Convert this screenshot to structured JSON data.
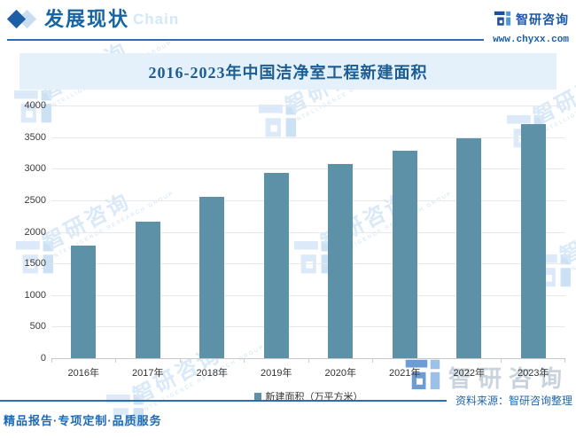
{
  "header": {
    "page_title": "发展现状",
    "watermark_text": "Chain",
    "brand_name": "智研咨询",
    "brand_url": "www.chyxx.com"
  },
  "chart_data": {
    "type": "bar",
    "title": "2016-2023年中国洁净室工程新建面积",
    "categories": [
      "2016年",
      "2017年",
      "2018年",
      "2019年",
      "2020年",
      "2021年",
      "2022年",
      "2023年"
    ],
    "values": [
      1780,
      2160,
      2560,
      2930,
      3070,
      3280,
      3480,
      3700
    ],
    "series_name": "新建面积（万平方米）",
    "unit": "万平方米",
    "xlabel": "",
    "ylabel": "",
    "ylim": [
      0,
      4000
    ],
    "yticks": [
      0,
      500,
      1000,
      1500,
      2000,
      2500,
      3000,
      3500,
      4000
    ],
    "grid": true,
    "legend_position": "bottom",
    "bar_color": "#5d91a8"
  },
  "watermark": {
    "logo_text": "智研咨询",
    "sub_text": "INTELLIGENCE RESEARCH GROUP"
  },
  "source_label": "资料来源：智研咨询整理",
  "footer_slogan": "精品报告·专项定制·品质服务",
  "colors": {
    "accent_blue": "#2e6cb5",
    "brand_blue": "#1b57a6",
    "bar_teal": "#5d91a8",
    "banner_bg": "#e4f1fb",
    "title_blue": "#1c5d94"
  }
}
